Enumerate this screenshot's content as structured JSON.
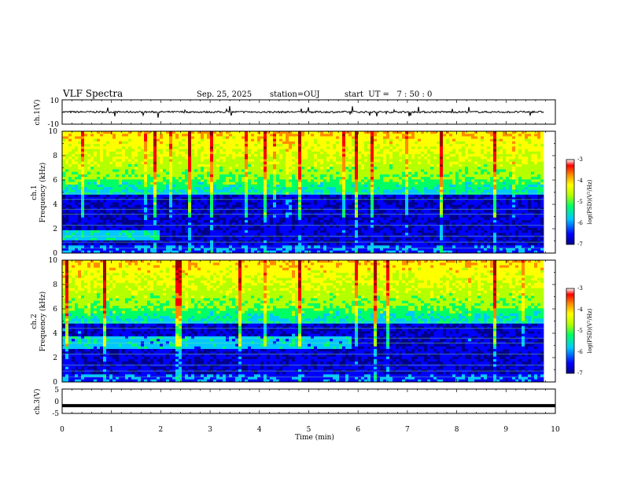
{
  "header": {
    "title": "VLF Spectra",
    "date": "Sep. 25, 2025",
    "station": "station=OUJ",
    "start_ut": "start  UT =   7 : 50 : 0"
  },
  "chart_data": [
    {
      "type": "line",
      "panel": "ch1-waveform",
      "ylabel": "ch.1(V)",
      "ylim": [
        -10,
        10
      ],
      "yticks": [
        "10",
        "-10"
      ],
      "xlim": [
        0,
        10
      ],
      "baseline": 0,
      "noise_amplitude": 1.5,
      "series": [
        {
          "values": []
        }
      ]
    },
    {
      "type": "heatmap",
      "panel": "ch1-spectrogram",
      "ylabel_line1": "ch.1",
      "ylabel_line2": "Frequency (kHz)",
      "ylim": [
        0,
        10
      ],
      "yticks": [
        "0",
        "2",
        "4",
        "6",
        "8",
        "10"
      ],
      "xlim": [
        0,
        9.85
      ],
      "colorbar": {
        "label": "log(PSD)(V²/Hz)",
        "range": [
          -7,
          -3
        ],
        "ticks": [
          "-3",
          "-4",
          "-5",
          "-6",
          "-7"
        ]
      }
    },
    {
      "type": "heatmap",
      "panel": "ch2-spectrogram",
      "ylabel_line1": "ch.2",
      "ylabel_line2": "Frequency (kHz)",
      "ylim": [
        0,
        10
      ],
      "yticks": [
        "0",
        "2",
        "4",
        "6",
        "8",
        "10"
      ],
      "xlim": [
        0,
        9.85
      ],
      "colorbar": {
        "label": "log(PSD)(V²/Hz)",
        "range": [
          -7,
          -3
        ],
        "ticks": [
          "-3",
          "-4",
          "-5",
          "-6",
          "-7"
        ]
      }
    },
    {
      "type": "line",
      "panel": "ch3-waveform",
      "ylabel": "ch.3(V)",
      "ylim": [
        -5,
        5
      ],
      "yticks": [
        "5",
        "0",
        "-5"
      ],
      "xlim": [
        0,
        10
      ],
      "baseline": -1.8,
      "series": [
        {
          "values": []
        }
      ]
    }
  ],
  "x_axis": {
    "label": "Time (min)",
    "ticks": [
      "0",
      "1",
      "2",
      "3",
      "4",
      "5",
      "6",
      "7",
      "8",
      "9",
      "10"
    ]
  },
  "colors": {
    "frame": "#000000",
    "background": "#ffffff",
    "colormap": [
      "#00008b",
      "#0000ff",
      "#00c8ff",
      "#00ff64",
      "#b4ff00",
      "#ffff00",
      "#ff8c00",
      "#ff0000",
      "#a00000"
    ]
  }
}
